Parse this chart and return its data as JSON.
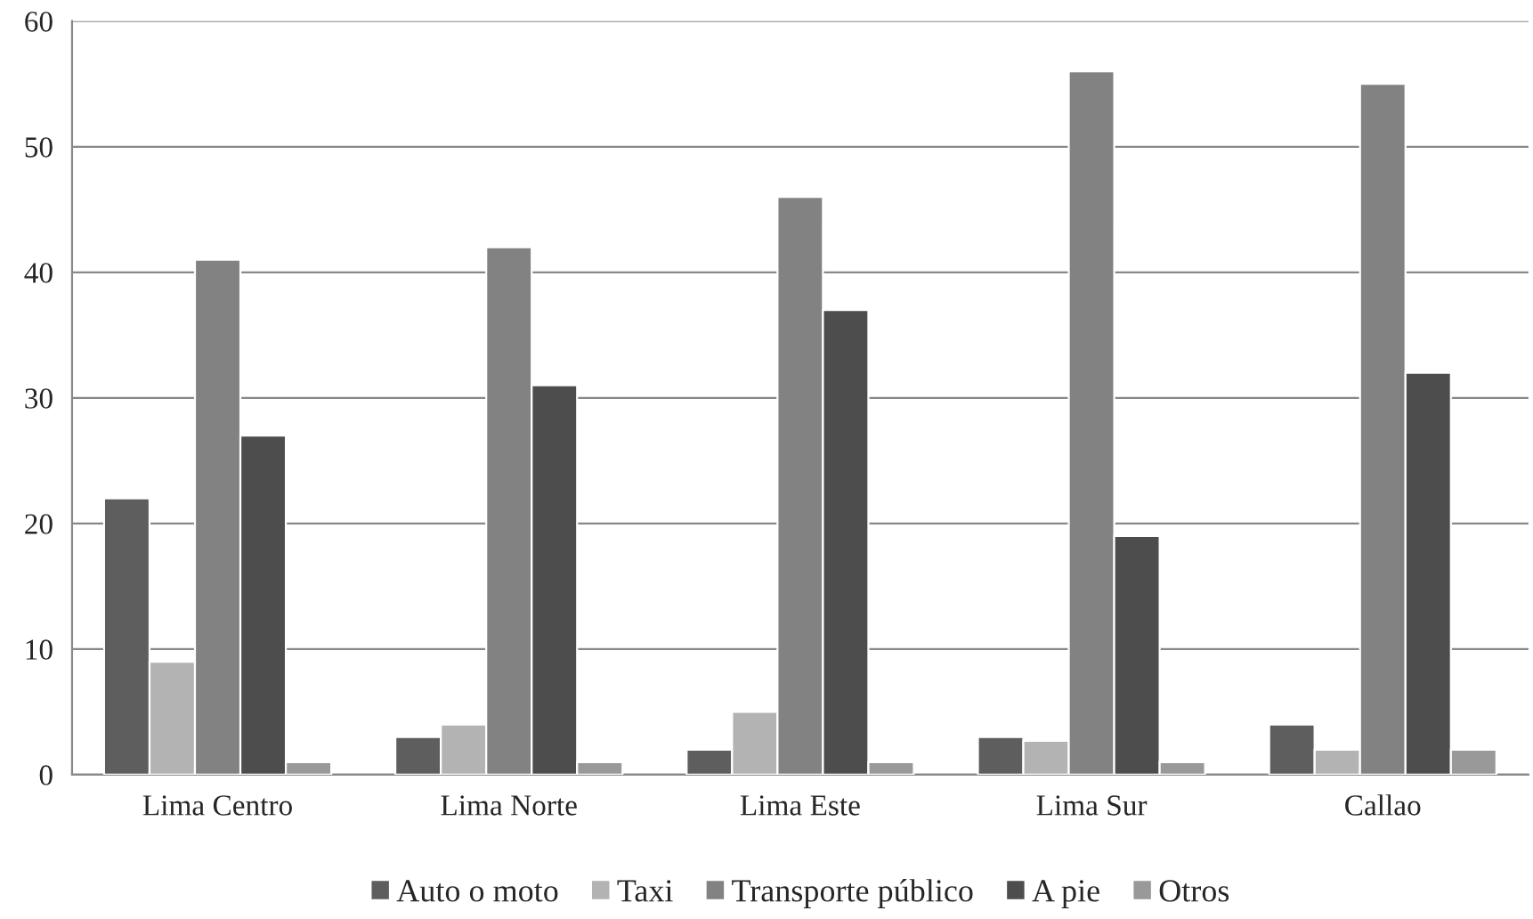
{
  "chart_data": {
    "type": "bar",
    "categories": [
      "Lima Centro",
      "Lima Norte",
      "Lima Este",
      "Lima Sur",
      "Callao"
    ],
    "series": [
      {
        "name": "Auto o moto",
        "color": "#5e5e5e",
        "values": [
          22,
          3,
          2,
          3,
          4
        ]
      },
      {
        "name": "Taxi",
        "color": "#b3b3b3",
        "values": [
          9,
          4,
          5,
          2.7,
          2
        ]
      },
      {
        "name": "Transporte público",
        "color": "#828282",
        "values": [
          41,
          42,
          46,
          56,
          55
        ]
      },
      {
        "name": "A pie",
        "color": "#4d4d4d",
        "values": [
          27,
          31,
          37,
          19,
          32
        ]
      },
      {
        "name": "Otros",
        "color": "#999999",
        "values": [
          1,
          1,
          1,
          1,
          2
        ]
      }
    ],
    "ylim": [
      0,
      60
    ],
    "yticks": [
      0,
      10,
      20,
      30,
      40,
      50,
      60
    ],
    "grid": "y",
    "legend": "bottom"
  }
}
